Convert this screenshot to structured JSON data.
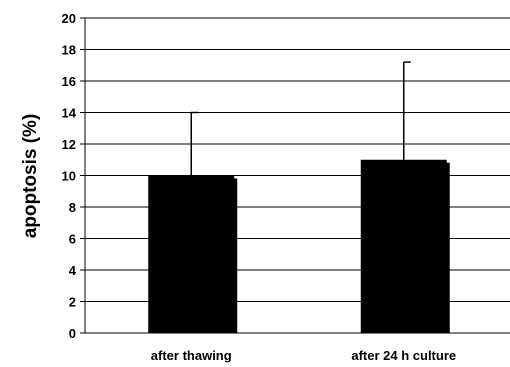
{
  "chart_data": {
    "type": "bar",
    "title": "",
    "xlabel": "",
    "ylabel": "apoptosis (%)",
    "ylim": [
      0,
      20
    ],
    "yticks": [
      0,
      2,
      4,
      6,
      8,
      10,
      12,
      14,
      16,
      18,
      20
    ],
    "categories": [
      "after thawing",
      "after 24 h culture"
    ],
    "values": [
      10.0,
      11.0
    ],
    "error_upper": [
      4.0,
      6.2
    ],
    "grid": "horizontal",
    "bar_color": "#000000",
    "legend": "none"
  }
}
